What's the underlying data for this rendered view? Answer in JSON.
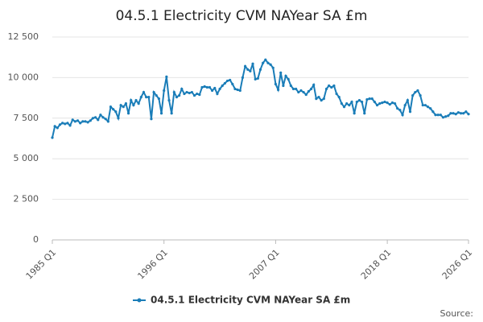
{
  "chart_data": {
    "type": "line",
    "title": "04.5.1 Electricity CVM NAYear SA £m",
    "source": "Source:",
    "categories": [
      "1985 Q1",
      null,
      null,
      null,
      null,
      null,
      null,
      null,
      null,
      null,
      null,
      null,
      null,
      null,
      null,
      null,
      null,
      null,
      null,
      null,
      null,
      null,
      null,
      null,
      null,
      null,
      null,
      null,
      null,
      null,
      null,
      null,
      null,
      null,
      null,
      null,
      null,
      null,
      null,
      null,
      null,
      null,
      null,
      null,
      "1996 Q1",
      null,
      null,
      null,
      null,
      null,
      null,
      null,
      null,
      null,
      null,
      null,
      null,
      null,
      null,
      null,
      null,
      null,
      null,
      null,
      null,
      null,
      null,
      null,
      null,
      null,
      null,
      null,
      null,
      null,
      null,
      null,
      null,
      null,
      null,
      null,
      null,
      null,
      null,
      null,
      null,
      null,
      null,
      null,
      "2007 Q1",
      null,
      null,
      null,
      null,
      null,
      null,
      null,
      null,
      null,
      null,
      null,
      null,
      null,
      null,
      null,
      null,
      null,
      null,
      null,
      null,
      null,
      null,
      null,
      null,
      null,
      null,
      null,
      null,
      null,
      null,
      null,
      null,
      null,
      null,
      null,
      null,
      null,
      null,
      null,
      null,
      null,
      null,
      null,
      "2018 Q1",
      null,
      null,
      null,
      null,
      null,
      null,
      null,
      null,
      null,
      null,
      null,
      null,
      null,
      null,
      null,
      null,
      null,
      null,
      null,
      null,
      null,
      null,
      null,
      null,
      null,
      null,
      null,
      null,
      null,
      null,
      null,
      "2026 Q1"
    ],
    "series": [
      {
        "name": "04.5.1 Electricity CVM NAYear SA £m",
        "color": "#1a7db8",
        "values": [
          6300,
          7000,
          6900,
          7100,
          7200,
          7150,
          7200,
          7050,
          7400,
          7300,
          7350,
          7200,
          7300,
          7300,
          7250,
          7350,
          7500,
          7550,
          7400,
          7700,
          7550,
          7450,
          7300,
          8200,
          8050,
          7900,
          7500,
          8300,
          8200,
          8400,
          7800,
          8600,
          8300,
          8600,
          8400,
          8800,
          9100,
          8800,
          8800,
          7450,
          9100,
          8900,
          8700,
          7800,
          9200,
          10050,
          8600,
          7800,
          9100,
          8800,
          8900,
          9300,
          9000,
          9100,
          9050,
          9100,
          8900,
          9000,
          8950,
          9400,
          9450,
          9400,
          9400,
          9200,
          9350,
          9000,
          9300,
          9500,
          9650,
          9800,
          9850,
          9600,
          9300,
          9250,
          9200,
          10000,
          10700,
          10500,
          10400,
          10850,
          9900,
          9950,
          10500,
          10900,
          11100,
          10900,
          10800,
          10600,
          9600,
          9250,
          10300,
          9500,
          10100,
          9900,
          9500,
          9300,
          9300,
          9100,
          9200,
          9100,
          8950,
          9150,
          9300,
          9550,
          8700,
          8800,
          8600,
          8700,
          9300,
          9500,
          9400,
          9500,
          9000,
          8800,
          8400,
          8200,
          8400,
          8300,
          8500,
          7800,
          8500,
          8600,
          8500,
          7800,
          8650,
          8700,
          8700,
          8500,
          8300,
          8400,
          8450,
          8500,
          8450,
          8350,
          8450,
          8400,
          8100,
          8000,
          7700,
          8300,
          8600,
          7900,
          8900,
          9100,
          9200,
          8900,
          8300,
          8300,
          8200,
          8100,
          7900,
          7700,
          7700,
          7700,
          7550,
          7600,
          7650,
          7800,
          7800,
          7750,
          7850,
          7800,
          7800,
          7900,
          7750
        ]
      }
    ],
    "ylim": [
      0,
      12500
    ],
    "yticks": [
      0,
      {
        "value": 2500,
        "label": "2 500"
      },
      {
        "value": 5000,
        "label": "5 000"
      },
      {
        "value": 7500,
        "label": "7 500"
      },
      {
        "value": 10000,
        "label": "10 000"
      },
      {
        "value": 12500,
        "label": "12 500"
      }
    ],
    "grid": true,
    "legend": "bottom"
  }
}
